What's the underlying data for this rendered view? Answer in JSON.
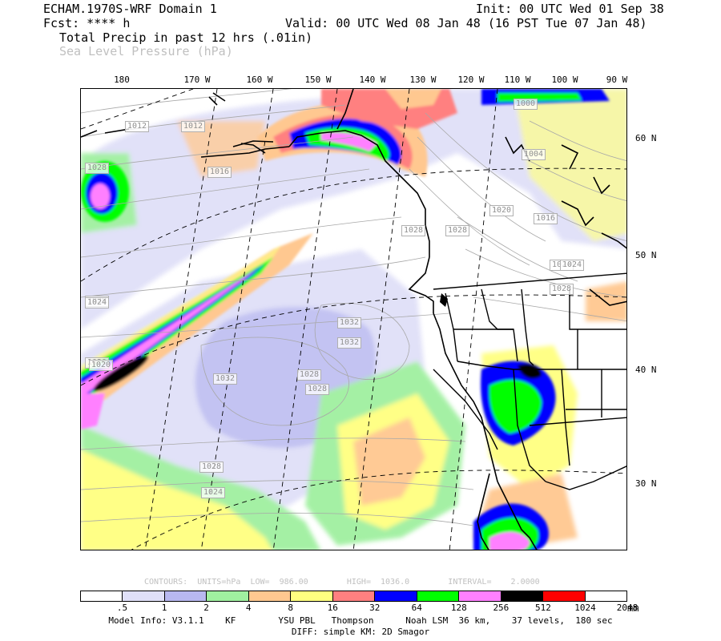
{
  "header": {
    "model": "ECHAM.1970S-WRF Domain 1",
    "init": "Init: 00 UTC Wed 01 Sep 38",
    "fcst": "Fcst: **** h",
    "valid": "Valid: 00 UTC Wed 08 Jan 48 (16 PST Tue 07 Jan 48)",
    "field1": "Total Precip in past 12 hrs (.01in)",
    "field2": "Sea Level Pressure (hPa)"
  },
  "longitude_labels": [
    "180",
    "170 W",
    "160 W",
    "150 W",
    "140 W",
    "130 W",
    "120 W",
    "110 W",
    "100 W",
    "90 W"
  ],
  "latitude_labels": [
    "60 N",
    "50 N",
    "40 N",
    "30 N"
  ],
  "pressure_labels": [
    "1028",
    "1012",
    "1016",
    "1028",
    "1024",
    "1020",
    "1028",
    "1028",
    "1024",
    "1032",
    "1032",
    "1032",
    "1028",
    "1024",
    "1028",
    "1020",
    "1012",
    "1004",
    "1020",
    "1028",
    "1016",
    "1024",
    "1028",
    "1000"
  ],
  "contour_info": "CONTOURS:  UNITS=hPa  LOW=  986.00        HIGH=  1036.0        INTERVAL=    2.0000",
  "colorbar": {
    "colors": [
      "#ffffff",
      "#e0e0f8",
      "#b8b8f0",
      "#a0f0a0",
      "#ffc890",
      "#ffff80",
      "#ff8080",
      "#0000ff",
      "#00ff00",
      "#ff80ff",
      "#000000",
      "#ff0000",
      "#ffffff"
    ],
    "labels": [
      ".5",
      "1",
      "2",
      "4",
      "8",
      "16",
      "32",
      "64",
      "128",
      "256",
      "512",
      "1024",
      "2048"
    ],
    "units": "mm"
  },
  "footer": {
    "line1": "Model Info: V3.1.1    KF        YSU PBL   Thompson      Noah LSM  36 km,    37 levels,  180 sec",
    "line2": "DIFF: simple KM: 2D Smagor"
  }
}
